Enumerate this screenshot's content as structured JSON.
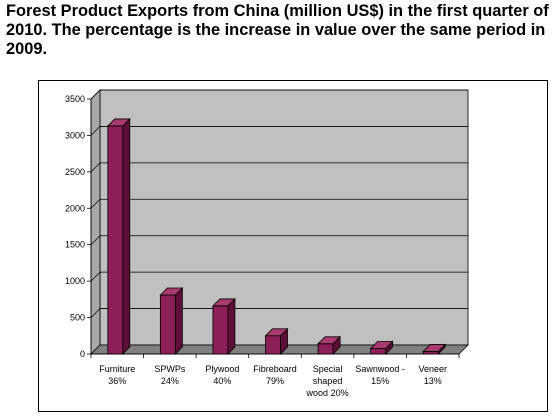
{
  "chart_data": {
    "type": "bar",
    "title": "Forest Product Exports from China (million US$) in the first quarter of 2010. The percentage is the increase in value over the same period in 2009.",
    "categories": [
      [
        "Furniture",
        "36%"
      ],
      [
        "SPWPs",
        "24%"
      ],
      [
        "Plywood",
        "40%"
      ],
      [
        "Fibreboard",
        "79%"
      ],
      [
        "Special",
        "shaped",
        "wood 20%"
      ],
      [
        "Sawnwood -",
        "15%"
      ],
      [
        "Veneer",
        "13%"
      ]
    ],
    "values": [
      3130,
      810,
      660,
      250,
      140,
      75,
      35
    ],
    "y_ticks": [
      "0",
      "500",
      "1000",
      "1500",
      "2000",
      "2500",
      "3000",
      "3500"
    ],
    "ylim": [
      0,
      3500
    ],
    "grid": true,
    "legend": false,
    "colors": {
      "bar_front": "#8c1f55",
      "bar_side": "#5e0f38",
      "bar_top": "#a83a6f",
      "wall": "#c0c0c0",
      "floor": "#808080"
    }
  }
}
